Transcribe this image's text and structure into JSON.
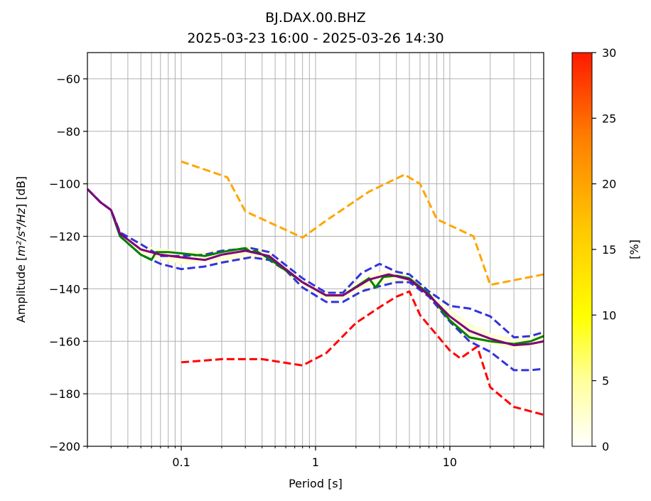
{
  "chart_data": {
    "type": "line",
    "title": "BJ.DAX.00.BHZ",
    "subtitle": "2025-03-23 16:00 - 2025-03-26 14:30",
    "xlabel": "Period [s]",
    "ylabel_prefix": "Amplitude [",
    "ylabel_units": "m²/s⁴/Hz",
    "ylabel_suffix": "] [dB]",
    "x_scale": "log",
    "xlim": [
      0.02,
      50
    ],
    "ylim": [
      -200,
      -50
    ],
    "x_ticks": [
      {
        "value": 0.1,
        "label": "0.1"
      },
      {
        "value": 1,
        "label": "1"
      },
      {
        "value": 10,
        "label": "10"
      }
    ],
    "y_ticks": [
      {
        "value": -200,
        "label": "−200"
      },
      {
        "value": -180,
        "label": "−180"
      },
      {
        "value": -160,
        "label": "−160"
      },
      {
        "value": -140,
        "label": "−140"
      },
      {
        "value": -120,
        "label": "−120"
      },
      {
        "value": -100,
        "label": "−100"
      },
      {
        "value": -80,
        "label": "−80"
      },
      {
        "value": -60,
        "label": "−60"
      }
    ],
    "grid": true,
    "colorbar": {
      "label": "[%]",
      "range": [
        0,
        30
      ],
      "ticks": [
        {
          "value": 0,
          "label": "0"
        },
        {
          "value": 5,
          "label": "5"
        },
        {
          "value": 10,
          "label": "10"
        },
        {
          "value": 15,
          "label": "15"
        },
        {
          "value": 20,
          "label": "20"
        },
        {
          "value": 25,
          "label": "25"
        },
        {
          "value": 30,
          "label": "30"
        }
      ],
      "colors": [
        "#ffffff",
        "#ffff66",
        "#ffff00",
        "#ffc800",
        "#ff8c00",
        "#ff2800"
      ]
    },
    "series": [
      {
        "style": "dashed",
        "color": "#ffa500",
        "x": [
          0.1,
          0.22,
          0.3,
          0.8,
          1.2,
          2.5,
          4.6,
          6,
          8,
          15,
          20,
          50
        ],
        "y": [
          -91.5,
          -97.5,
          -110.5,
          -120.5,
          -114,
          -103,
          -96.5,
          -100,
          -113.5,
          -120,
          -138.5,
          -134.5
        ]
      },
      {
        "style": "dashed",
        "color": "#ff0000",
        "x": [
          0.1,
          0.2,
          0.4,
          0.8,
          1.2,
          2,
          3,
          4,
          5,
          6,
          10,
          12,
          16,
          20,
          30,
          50
        ],
        "y": [
          -168,
          -166.8,
          -166.8,
          -169.2,
          -164.5,
          -153,
          -147,
          -143,
          -141,
          -150,
          -163.5,
          -166.5,
          -162,
          -177.5,
          -185,
          -188
        ]
      },
      {
        "style": "dashed",
        "color": "#3333dd",
        "x": [
          0.02,
          0.025,
          0.03,
          0.035,
          0.05,
          0.07,
          0.1,
          0.15,
          0.2,
          0.33,
          0.45,
          0.6,
          0.8,
          1.2,
          1.6,
          2.2,
          3,
          4,
          5,
          7,
          10,
          14,
          20,
          30,
          40,
          50
        ],
        "y": [
          -102,
          -107,
          -110,
          -118.5,
          -123,
          -127.5,
          -127.5,
          -127,
          -125.5,
          -124.5,
          -126,
          -131,
          -136,
          -141.5,
          -141.5,
          -134,
          -130.5,
          -133.5,
          -134.5,
          -141,
          -146.5,
          -147.5,
          -150.5,
          -158.5,
          -158,
          -156.5
        ]
      },
      {
        "style": "dashed",
        "color": "#3333dd",
        "x": [
          0.02,
          0.025,
          0.03,
          0.035,
          0.05,
          0.07,
          0.1,
          0.15,
          0.2,
          0.33,
          0.45,
          0.6,
          0.8,
          1.2,
          1.6,
          2.2,
          3,
          4,
          5,
          7,
          10,
          14,
          20,
          30,
          40,
          50
        ],
        "y": [
          -102,
          -107,
          -110,
          -120,
          -127,
          -130.5,
          -132.5,
          -131.5,
          -130,
          -128,
          -129,
          -133,
          -139.5,
          -145,
          -145,
          -141,
          -139,
          -137.5,
          -137.5,
          -143,
          -152.5,
          -160,
          -164,
          -171,
          -171,
          -170.5
        ]
      },
      {
        "style": "solid",
        "color": "#008000",
        "x": [
          0.02,
          0.025,
          0.03,
          0.035,
          0.05,
          0.06,
          0.065,
          0.08,
          0.1,
          0.15,
          0.2,
          0.3,
          0.33,
          0.36,
          0.45,
          0.6,
          0.8,
          1.2,
          1.6,
          2.5,
          2.8,
          3.2,
          4,
          5,
          7,
          10,
          14,
          20,
          30,
          40,
          50
        ],
        "y": [
          -102,
          -107,
          -110,
          -120,
          -127,
          -129,
          -126,
          -126,
          -126.5,
          -127.5,
          -126,
          -124.5,
          -126,
          -125.5,
          -128.5,
          -133,
          -137.5,
          -142.5,
          -142.5,
          -136,
          -139.5,
          -135.5,
          -135,
          -136,
          -142,
          -152,
          -158.5,
          -160,
          -161,
          -160,
          -158
        ]
      },
      {
        "style": "solid",
        "color": "#800080",
        "x": [
          0.02,
          0.025,
          0.03,
          0.035,
          0.05,
          0.07,
          0.1,
          0.15,
          0.2,
          0.3,
          0.45,
          0.6,
          0.8,
          1.2,
          1.6,
          2.5,
          3.5,
          5,
          7,
          10,
          14,
          20,
          30,
          40,
          50
        ],
        "y": [
          -102,
          -107,
          -110,
          -119,
          -125,
          -127,
          -128,
          -129,
          -127,
          -125.5,
          -127.5,
          -132.5,
          -137.5,
          -142.5,
          -142.5,
          -136.5,
          -134.5,
          -136.5,
          -142.5,
          -150.5,
          -156,
          -159,
          -161.5,
          -161,
          -160
        ]
      }
    ],
    "density_band": {
      "color": "#ffffd8",
      "upper": {
        "x": [
          0.02,
          0.03,
          0.035,
          0.05,
          0.08,
          0.1,
          0.2,
          0.33,
          0.45,
          0.8,
          1.2,
          1.6,
          2.5,
          3.5,
          5,
          7,
          10,
          14,
          20,
          30,
          50
        ],
        "y": [
          -102,
          -110,
          -118,
          -123.5,
          -125,
          -126,
          -125,
          -123.5,
          -125.5,
          -136,
          -141,
          -141,
          -134.5,
          -133,
          -134.5,
          -140,
          -148,
          -153,
          -157,
          -159,
          -156.5
        ]
      },
      "lower": {
        "x": [
          0.02,
          0.03,
          0.035,
          0.05,
          0.08,
          0.1,
          0.2,
          0.33,
          0.45,
          0.8,
          1.2,
          1.6,
          2.5,
          3.5,
          5,
          7,
          10,
          14,
          20,
          30,
          50
        ],
        "y": [
          -102,
          -110,
          -120,
          -127,
          -129.5,
          -130.5,
          -129.5,
          -128,
          -129.5,
          -139,
          -144,
          -144,
          -139,
          -137.5,
          -138,
          -144,
          -153,
          -159.5,
          -161,
          -163,
          -161
        ]
      }
    }
  }
}
